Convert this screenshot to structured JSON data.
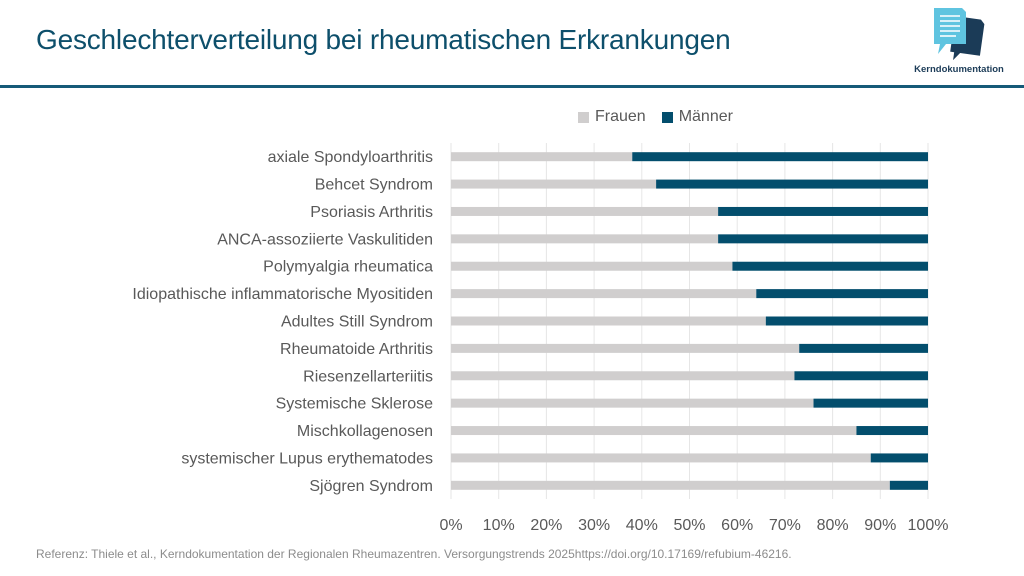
{
  "header": {
    "title": "Geschlechterverteilung bei rheumatischen Erkrankungen",
    "logo_text": "Kerndokumentation",
    "logo_icon": "document-chat-bubbles-icon"
  },
  "colors": {
    "frauen": "#d0cece",
    "maenner": "#034e6d",
    "title": "#0d4f6b",
    "rule": "#155a78",
    "gridline": "#e6e6e6",
    "label_text": "#595959"
  },
  "footnote": "Referenz: Thiele et al., Kerndokumentation der Regionalen Rheumazentren. Versorgungstrends 2025https://doi.org/10.17169/refubium-46216.",
  "chart_data": {
    "type": "bar",
    "orientation": "horizontal",
    "stacked": "percent",
    "title": "Geschlechterverteilung bei rheumatischen Erkrankungen",
    "xlabel": "",
    "ylabel": "",
    "xlim": [
      0,
      100
    ],
    "x_ticks": [
      "0%",
      "10%",
      "20%",
      "30%",
      "40%",
      "50%",
      "60%",
      "70%",
      "80%",
      "90%",
      "100%"
    ],
    "grid": true,
    "legend_position": "top",
    "categories": [
      "axiale Spondyloarthritis",
      "Behcet Syndrom",
      "Psoriasis Arthritis",
      "ANCA-assoziierte Vaskulitiden",
      "Polymyalgia rheumatica",
      "Idiopathische inflammatorische Myositiden",
      "Adultes Still Syndrom",
      "Rheumatoide Arthritis",
      "Riesenzellarteriitis",
      "Systemische Sklerose",
      "Mischkollagenosen",
      "systemischer Lupus erythematodes",
      "Sjögren Syndrom"
    ],
    "series": [
      {
        "name": "Frauen",
        "color": "#d0cece",
        "values": [
          38,
          43,
          56,
          56,
          59,
          64,
          66,
          73,
          72,
          76,
          85,
          88,
          92
        ]
      },
      {
        "name": "Männer",
        "color": "#034e6d",
        "values": [
          62,
          57,
          44,
          44,
          41,
          36,
          34,
          27,
          28,
          24,
          15,
          12,
          8
        ]
      }
    ]
  }
}
